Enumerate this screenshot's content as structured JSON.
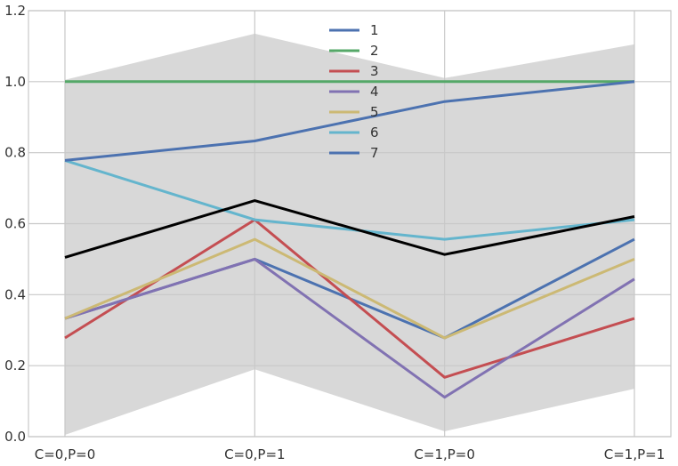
{
  "chart_data": {
    "type": "line",
    "title": "",
    "xlabel": "",
    "ylabel": "",
    "categories": [
      "C=0,P=0",
      "C=0,P=1",
      "C=1,P=0",
      "C=1,P=1"
    ],
    "ylim": [
      0,
      1.2
    ],
    "yticks": [
      "0.0",
      "0.2",
      "0.4",
      "0.6",
      "0.8",
      "1.0",
      "1.2"
    ],
    "grid": true,
    "legend_position": "top-center",
    "band": {
      "upper": [
        1.005,
        1.135,
        1.01,
        1.105
      ],
      "lower": [
        0.005,
        0.19,
        0.015,
        0.135
      ],
      "color": "#d8d8d8"
    },
    "mean_line": {
      "values": [
        0.505,
        0.665,
        0.513,
        0.62
      ],
      "color": "#000000"
    },
    "series": [
      {
        "name": "1",
        "color": "#4c72b0",
        "values": [
          0.333,
          0.5,
          0.278,
          0.556
        ]
      },
      {
        "name": "2",
        "color": "#55a868",
        "values": [
          1.0,
          1.0,
          1.0,
          1.0
        ]
      },
      {
        "name": "3",
        "color": "#c44e52",
        "values": [
          0.278,
          0.611,
          0.167,
          0.333
        ]
      },
      {
        "name": "4",
        "color": "#8172b2",
        "values": [
          0.333,
          0.5,
          0.111,
          0.444
        ]
      },
      {
        "name": "5",
        "color": "#ccb974",
        "values": [
          0.333,
          0.556,
          0.278,
          0.5
        ]
      },
      {
        "name": "6",
        "color": "#64b5cd",
        "values": [
          0.778,
          0.611,
          0.556,
          0.611
        ]
      },
      {
        "name": "7",
        "color": "#4c72b0",
        "values": [
          0.778,
          0.833,
          0.944,
          1.0
        ]
      }
    ]
  }
}
